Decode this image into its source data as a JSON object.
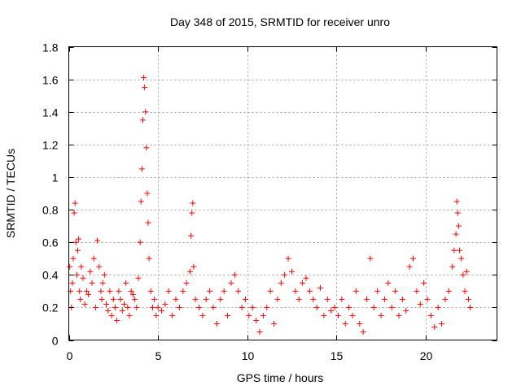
{
  "chart_data": {
    "type": "scatter",
    "title": "Day 348 of 2015, SRMTID for receiver unro",
    "xlabel": "GPS time / hours",
    "ylabel": "SRMTID / TECUs",
    "xlim": [
      0,
      24
    ],
    "ylim": [
      0,
      1.8
    ],
    "xticks": [
      0,
      5,
      10,
      15,
      20
    ],
    "xtick_labels": [
      "0",
      "5",
      "10",
      "15",
      "20"
    ],
    "yticks": [
      0,
      0.2,
      0.4,
      0.6,
      0.8,
      1,
      1.2,
      1.4,
      1.6,
      1.8
    ],
    "ytick_labels": [
      "0",
      "0.2",
      "0.4",
      "0.6",
      "0.8",
      "1",
      "1.2",
      "1.4",
      "1.6",
      "1.8"
    ],
    "grid": true,
    "marker": "+",
    "marker_color": "#ff0000",
    "series": [
      {
        "name": "SRMTID",
        "x": [
          0.05,
          0.1,
          0.15,
          0.2,
          0.25,
          0.3,
          0.35,
          0.4,
          0.45,
          0.5,
          0.55,
          0.6,
          0.65,
          0.7,
          0.8,
          0.9,
          1.0,
          1.1,
          1.2,
          1.3,
          1.4,
          1.5,
          1.6,
          1.7,
          1.8,
          1.85,
          1.9,
          2.0,
          2.1,
          2.2,
          2.3,
          2.4,
          2.5,
          2.6,
          2.7,
          2.8,
          2.9,
          3.0,
          3.1,
          3.2,
          3.3,
          3.4,
          3.5,
          3.6,
          3.7,
          3.8,
          3.9,
          4.0,
          4.05,
          4.1,
          4.15,
          4.2,
          4.25,
          4.3,
          4.35,
          4.4,
          4.45,
          4.5,
          4.6,
          4.7,
          4.8,
          4.9,
          5.0,
          5.2,
          5.4,
          5.6,
          5.8,
          6.0,
          6.2,
          6.4,
          6.6,
          6.8,
          6.85,
          6.9,
          6.95,
          7.0,
          7.1,
          7.3,
          7.5,
          7.7,
          7.9,
          8.1,
          8.3,
          8.5,
          8.7,
          8.9,
          9.1,
          9.3,
          9.5,
          9.7,
          9.9,
          10.1,
          10.3,
          10.5,
          10.7,
          10.9,
          11.1,
          11.3,
          11.5,
          11.7,
          11.9,
          12.1,
          12.3,
          12.5,
          12.7,
          12.9,
          13.1,
          13.3,
          13.5,
          13.7,
          13.9,
          14.1,
          14.3,
          14.5,
          14.7,
          14.9,
          15.1,
          15.3,
          15.5,
          15.7,
          15.9,
          16.1,
          16.3,
          16.5,
          16.7,
          16.9,
          17.1,
          17.3,
          17.5,
          17.7,
          17.9,
          18.1,
          18.3,
          18.5,
          18.7,
          18.9,
          19.1,
          19.3,
          19.5,
          19.7,
          19.9,
          20.1,
          20.3,
          20.5,
          20.7,
          20.9,
          21.1,
          21.3,
          21.5,
          21.6,
          21.7,
          21.75,
          21.8,
          21.85,
          21.9,
          22.0,
          22.1,
          22.2,
          22.3,
          22.4,
          22.5
        ],
        "values": [
          0.45,
          0.3,
          0.2,
          0.35,
          0.5,
          0.78,
          0.84,
          0.6,
          0.4,
          0.55,
          0.62,
          0.3,
          0.25,
          0.45,
          0.38,
          0.22,
          0.3,
          0.28,
          0.42,
          0.35,
          0.5,
          0.2,
          0.61,
          0.45,
          0.3,
          0.25,
          0.35,
          0.4,
          0.22,
          0.18,
          0.3,
          0.15,
          0.25,
          0.2,
          0.12,
          0.3,
          0.25,
          0.18,
          0.22,
          0.35,
          0.2,
          0.15,
          0.3,
          0.28,
          0.25,
          0.2,
          0.38,
          0.6,
          0.85,
          1.05,
          1.35,
          1.61,
          1.55,
          1.4,
          1.18,
          0.9,
          0.72,
          0.5,
          0.3,
          0.2,
          0.25,
          0.15,
          0.2,
          0.18,
          0.22,
          0.3,
          0.15,
          0.25,
          0.2,
          0.3,
          0.35,
          0.42,
          0.64,
          0.78,
          0.84,
          0.45,
          0.25,
          0.2,
          0.15,
          0.25,
          0.3,
          0.2,
          0.1,
          0.25,
          0.3,
          0.15,
          0.35,
          0.4,
          0.3,
          0.2,
          0.25,
          0.15,
          0.2,
          0.12,
          0.05,
          0.15,
          0.2,
          0.3,
          0.1,
          0.25,
          0.35,
          0.4,
          0.5,
          0.42,
          0.3,
          0.25,
          0.35,
          0.38,
          0.3,
          0.25,
          0.2,
          0.32,
          0.15,
          0.25,
          0.18,
          0.2,
          0.15,
          0.25,
          0.1,
          0.2,
          0.15,
          0.3,
          0.1,
          0.05,
          0.25,
          0.5,
          0.2,
          0.3,
          0.15,
          0.25,
          0.35,
          0.2,
          0.3,
          0.15,
          0.25,
          0.18,
          0.45,
          0.5,
          0.3,
          0.22,
          0.35,
          0.25,
          0.15,
          0.08,
          0.2,
          0.1,
          0.25,
          0.3,
          0.45,
          0.55,
          0.65,
          0.85,
          0.78,
          0.7,
          0.55,
          0.5,
          0.4,
          0.3,
          0.42,
          0.25,
          0.2
        ]
      }
    ]
  }
}
